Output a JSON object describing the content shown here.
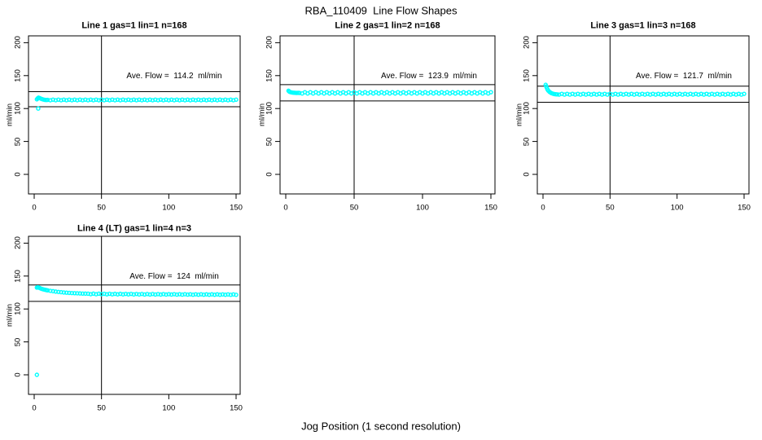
{
  "title": "RBA_110409  Line Flow Shapes",
  "xlabel": "Jog Position (1 second resolution)",
  "ylabel": "ml/min",
  "point_color": "#00FFFF",
  "line_color": "#000000",
  "axes": {
    "x_ticks": [
      0,
      50,
      100,
      150
    ],
    "y_ticks": [
      0,
      50,
      100,
      150,
      200
    ],
    "xlim": [
      0,
      155
    ],
    "ylim": [
      0,
      200
    ],
    "grid": false
  },
  "chart_data": [
    {
      "type": "scatter",
      "title": "Line 1 gas=1 lin=1 n=168",
      "line": 1,
      "gas": 1,
      "lin": 1,
      "n": 168,
      "ave_flow": 114.2,
      "ave_flow_text": "Ave. Flow =  114.2  ml/min",
      "limit_hi": 125.6,
      "limit_lo": 102.8,
      "vline_x": 50,
      "points": [
        [
          3,
          100
        ],
        [
          2,
          114
        ],
        [
          2.6,
          115.5
        ],
        [
          3.2,
          116.5
        ],
        [
          4,
          116
        ],
        [
          5,
          115
        ],
        [
          6,
          114.2
        ],
        [
          7,
          113.6
        ],
        [
          8,
          113.2
        ],
        [
          9,
          113
        ],
        [
          10,
          113.2
        ],
        [
          12,
          112.6
        ],
        [
          14,
          113.5
        ],
        [
          16,
          112.6
        ],
        [
          18,
          113.5
        ],
        [
          20,
          112.6
        ],
        [
          22,
          113.5
        ],
        [
          24,
          112.6
        ],
        [
          26,
          113.5
        ],
        [
          28,
          112.6
        ],
        [
          30,
          113.5
        ],
        [
          32,
          112.6
        ],
        [
          34,
          113.5
        ],
        [
          36,
          112.6
        ],
        [
          38,
          113.5
        ],
        [
          40,
          112.6
        ],
        [
          42,
          113.5
        ],
        [
          44,
          112.6
        ],
        [
          46,
          113.5
        ],
        [
          48,
          112.6
        ],
        [
          50,
          113.5
        ],
        [
          52,
          112.6
        ],
        [
          54,
          113.5
        ],
        [
          56,
          112.6
        ],
        [
          58,
          113.5
        ],
        [
          60,
          112.6
        ],
        [
          62,
          113.5
        ],
        [
          64,
          112.6
        ],
        [
          66,
          113.5
        ],
        [
          68,
          112.6
        ],
        [
          70,
          113.5
        ],
        [
          72,
          112.6
        ],
        [
          74,
          113.5
        ],
        [
          76,
          112.6
        ],
        [
          78,
          113.5
        ],
        [
          80,
          112.6
        ],
        [
          82,
          113.5
        ],
        [
          84,
          112.6
        ],
        [
          86,
          113.5
        ],
        [
          88,
          112.6
        ],
        [
          90,
          113.5
        ],
        [
          92,
          112.6
        ],
        [
          94,
          113.5
        ],
        [
          96,
          112.6
        ],
        [
          98,
          113.5
        ],
        [
          100,
          112.6
        ],
        [
          102,
          113.5
        ],
        [
          104,
          112.6
        ],
        [
          106,
          113.5
        ],
        [
          108,
          112.6
        ],
        [
          110,
          113.5
        ],
        [
          112,
          112.6
        ],
        [
          114,
          113.5
        ],
        [
          116,
          112.6
        ],
        [
          118,
          113.5
        ],
        [
          120,
          112.6
        ],
        [
          122,
          113.5
        ],
        [
          124,
          112.6
        ],
        [
          126,
          113.5
        ],
        [
          128,
          112.6
        ],
        [
          130,
          113.5
        ],
        [
          132,
          112.6
        ],
        [
          134,
          113.5
        ],
        [
          136,
          112.6
        ],
        [
          138,
          113.5
        ],
        [
          140,
          112.6
        ],
        [
          142,
          113.5
        ],
        [
          144,
          112.6
        ],
        [
          146,
          113.5
        ],
        [
          148,
          112.6
        ],
        [
          150,
          113.5
        ]
      ]
    },
    {
      "type": "scatter",
      "title": "Line 2 gas=1 lin=2 n=168",
      "line": 2,
      "gas": 1,
      "lin": 2,
      "n": 168,
      "ave_flow": 123.9,
      "ave_flow_text": "Ave. Flow =  123.9  ml/min",
      "limit_hi": 136.3,
      "limit_lo": 111.5,
      "vline_x": 50,
      "points": [
        [
          2,
          127
        ],
        [
          2.5,
          126
        ],
        [
          3,
          125.2
        ],
        [
          4,
          124.6
        ],
        [
          5,
          124.2
        ],
        [
          6,
          124
        ],
        [
          7,
          123.8
        ],
        [
          8,
          123.7
        ],
        [
          9,
          123.8
        ],
        [
          10,
          123.7
        ],
        [
          12,
          122.9
        ],
        [
          14,
          124.8
        ],
        [
          16,
          122.9
        ],
        [
          18,
          124.8
        ],
        [
          20,
          122.9
        ],
        [
          22,
          124.8
        ],
        [
          24,
          122.9
        ],
        [
          26,
          124.8
        ],
        [
          28,
          122.9
        ],
        [
          30,
          124.8
        ],
        [
          32,
          122.9
        ],
        [
          34,
          124.8
        ],
        [
          36,
          122.9
        ],
        [
          38,
          124.8
        ],
        [
          40,
          122.9
        ],
        [
          42,
          124.8
        ],
        [
          44,
          122.9
        ],
        [
          46,
          124.8
        ],
        [
          48,
          122.9
        ],
        [
          50,
          124.8
        ],
        [
          52,
          122.9
        ],
        [
          54,
          124.8
        ],
        [
          56,
          122.9
        ],
        [
          58,
          124.8
        ],
        [
          60,
          122.9
        ],
        [
          62,
          124.8
        ],
        [
          64,
          122.9
        ],
        [
          66,
          124.8
        ],
        [
          68,
          122.9
        ],
        [
          70,
          124.8
        ],
        [
          72,
          122.9
        ],
        [
          74,
          124.8
        ],
        [
          76,
          122.9
        ],
        [
          78,
          124.8
        ],
        [
          80,
          122.9
        ],
        [
          82,
          124.8
        ],
        [
          84,
          122.9
        ],
        [
          86,
          124.8
        ],
        [
          88,
          122.9
        ],
        [
          90,
          124.8
        ],
        [
          92,
          122.9
        ],
        [
          94,
          124.8
        ],
        [
          96,
          122.9
        ],
        [
          98,
          124.8
        ],
        [
          100,
          122.9
        ],
        [
          102,
          124.8
        ],
        [
          104,
          122.9
        ],
        [
          106,
          124.8
        ],
        [
          108,
          122.9
        ],
        [
          110,
          124.8
        ],
        [
          112,
          122.9
        ],
        [
          114,
          124.8
        ],
        [
          116,
          122.9
        ],
        [
          118,
          124.8
        ],
        [
          120,
          122.9
        ],
        [
          122,
          124.8
        ],
        [
          124,
          122.9
        ],
        [
          126,
          124.8
        ],
        [
          128,
          122.9
        ],
        [
          130,
          124.8
        ],
        [
          132,
          122.9
        ],
        [
          134,
          124.8
        ],
        [
          136,
          122.9
        ],
        [
          138,
          124.8
        ],
        [
          140,
          122.9
        ],
        [
          142,
          124.8
        ],
        [
          144,
          122.9
        ],
        [
          146,
          124.8
        ],
        [
          148,
          122.9
        ],
        [
          150,
          124.8
        ]
      ]
    },
    {
      "type": "scatter",
      "title": "Line 3 gas=1 lin=3 n=168",
      "line": 3,
      "gas": 1,
      "lin": 3,
      "n": 168,
      "ave_flow": 121.7,
      "ave_flow_text": "Ave. Flow =  121.7  ml/min",
      "limit_hi": 133.9,
      "limit_lo": 109.5,
      "vline_x": 50,
      "points": [
        [
          2,
          136
        ],
        [
          2.4,
          133.5
        ],
        [
          2.9,
          131
        ],
        [
          3.4,
          128.8
        ],
        [
          4,
          127
        ],
        [
          4.8,
          125.4
        ],
        [
          5.6,
          124.2
        ],
        [
          6.5,
          123.2
        ],
        [
          7.5,
          122.5
        ],
        [
          8.5,
          122
        ],
        [
          9.5,
          121.7
        ],
        [
          10.5,
          121.5
        ],
        [
          12,
          121.2
        ],
        [
          14,
          122.3
        ],
        [
          16,
          121.2
        ],
        [
          18,
          122.3
        ],
        [
          20,
          121.2
        ],
        [
          22,
          122.3
        ],
        [
          24,
          121.2
        ],
        [
          26,
          122.3
        ],
        [
          28,
          121.2
        ],
        [
          30,
          122.3
        ],
        [
          32,
          121.2
        ],
        [
          34,
          122.3
        ],
        [
          36,
          121.2
        ],
        [
          38,
          122.3
        ],
        [
          40,
          121.2
        ],
        [
          42,
          122.3
        ],
        [
          44,
          121.2
        ],
        [
          46,
          122.3
        ],
        [
          48,
          121.2
        ],
        [
          50,
          122.3
        ],
        [
          52,
          121.2
        ],
        [
          54,
          122.3
        ],
        [
          56,
          121.2
        ],
        [
          58,
          122.3
        ],
        [
          60,
          121.2
        ],
        [
          62,
          122.3
        ],
        [
          64,
          121.2
        ],
        [
          66,
          122.3
        ],
        [
          68,
          121.2
        ],
        [
          70,
          122.3
        ],
        [
          72,
          121.2
        ],
        [
          74,
          122.3
        ],
        [
          76,
          121.2
        ],
        [
          78,
          122.3
        ],
        [
          80,
          121.2
        ],
        [
          82,
          122.3
        ],
        [
          84,
          121.2
        ],
        [
          86,
          122.3
        ],
        [
          88,
          121.2
        ],
        [
          90,
          122.3
        ],
        [
          92,
          121.2
        ],
        [
          94,
          122.3
        ],
        [
          96,
          121.2
        ],
        [
          98,
          122.3
        ],
        [
          100,
          121.2
        ],
        [
          102,
          122.3
        ],
        [
          104,
          121.2
        ],
        [
          106,
          122.3
        ],
        [
          108,
          121.2
        ],
        [
          110,
          122.3
        ],
        [
          112,
          121.2
        ],
        [
          114,
          122.3
        ],
        [
          116,
          121.2
        ],
        [
          118,
          122.3
        ],
        [
          120,
          121.2
        ],
        [
          122,
          122.3
        ],
        [
          124,
          121.2
        ],
        [
          126,
          122.3
        ],
        [
          128,
          121.2
        ],
        [
          130,
          122.3
        ],
        [
          132,
          121.2
        ],
        [
          134,
          122.3
        ],
        [
          136,
          121.2
        ],
        [
          138,
          122.3
        ],
        [
          140,
          121.2
        ],
        [
          142,
          122.3
        ],
        [
          144,
          121.2
        ],
        [
          146,
          122.3
        ],
        [
          148,
          121.2
        ],
        [
          150,
          122.3
        ]
      ]
    },
    {
      "type": "scatter",
      "title": "Line 4 (LT) gas=1 lin=4 n=3",
      "line": 4,
      "gas": 1,
      "lin": 4,
      "n": 3,
      "ave_flow": 124,
      "ave_flow_text": "Ave. Flow =  124  ml/min",
      "limit_hi": 136.4,
      "limit_lo": 111.6,
      "vline_x": 50,
      "points": [
        [
          2,
          0
        ],
        [
          2,
          132.5
        ],
        [
          2.7,
          133
        ],
        [
          3.4,
          132.5
        ],
        [
          4.2,
          131.8
        ],
        [
          5,
          131
        ],
        [
          6,
          130.3
        ],
        [
          7,
          129.7
        ],
        [
          8,
          129.2
        ],
        [
          9,
          128.7
        ],
        [
          10,
          128.3
        ],
        [
          12,
          127.6
        ],
        [
          14,
          127
        ],
        [
          16,
          126.4
        ],
        [
          18,
          125.9
        ],
        [
          20,
          125.5
        ],
        [
          22,
          125.1
        ],
        [
          24,
          124.8
        ],
        [
          26,
          124.5
        ],
        [
          28,
          124.2
        ],
        [
          30,
          124
        ],
        [
          32,
          123.8
        ],
        [
          34,
          123.6
        ],
        [
          36,
          123.4
        ],
        [
          38,
          123.3
        ],
        [
          40,
          123.2
        ],
        [
          42,
          122.5
        ],
        [
          44,
          123.3
        ],
        [
          46,
          122.4
        ],
        [
          48,
          123.2
        ],
        [
          50,
          122.4
        ],
        [
          52,
          123.1
        ],
        [
          54,
          122.3
        ],
        [
          56,
          123.1
        ],
        [
          58,
          122.3
        ],
        [
          60,
          123
        ],
        [
          62,
          122.2
        ],
        [
          64,
          123
        ],
        [
          66,
          122.2
        ],
        [
          68,
          122.9
        ],
        [
          70,
          122.2
        ],
        [
          72,
          122.9
        ],
        [
          74,
          122.1
        ],
        [
          76,
          122.8
        ],
        [
          78,
          122.1
        ],
        [
          80,
          122.8
        ],
        [
          82,
          122
        ],
        [
          84,
          122.7
        ],
        [
          86,
          122
        ],
        [
          88,
          122.7
        ],
        [
          90,
          122
        ],
        [
          92,
          122.6
        ],
        [
          94,
          121.9
        ],
        [
          96,
          122.6
        ],
        [
          98,
          121.9
        ],
        [
          100,
          122.5
        ],
        [
          102,
          121.9
        ],
        [
          104,
          122.5
        ],
        [
          106,
          121.8
        ],
        [
          108,
          122.4
        ],
        [
          110,
          121.8
        ],
        [
          112,
          122.4
        ],
        [
          114,
          121.8
        ],
        [
          116,
          122.3
        ],
        [
          118,
          121.7
        ],
        [
          120,
          122.3
        ],
        [
          122,
          121.7
        ],
        [
          124,
          122.3
        ],
        [
          126,
          121.7
        ],
        [
          128,
          122.2
        ],
        [
          130,
          121.6
        ],
        [
          132,
          122.2
        ],
        [
          134,
          121.6
        ],
        [
          136,
          122.2
        ],
        [
          138,
          121.6
        ],
        [
          140,
          122.1
        ],
        [
          142,
          121.6
        ],
        [
          144,
          122.1
        ],
        [
          146,
          121.5
        ],
        [
          148,
          122.1
        ],
        [
          150,
          121.5
        ]
      ]
    }
  ]
}
